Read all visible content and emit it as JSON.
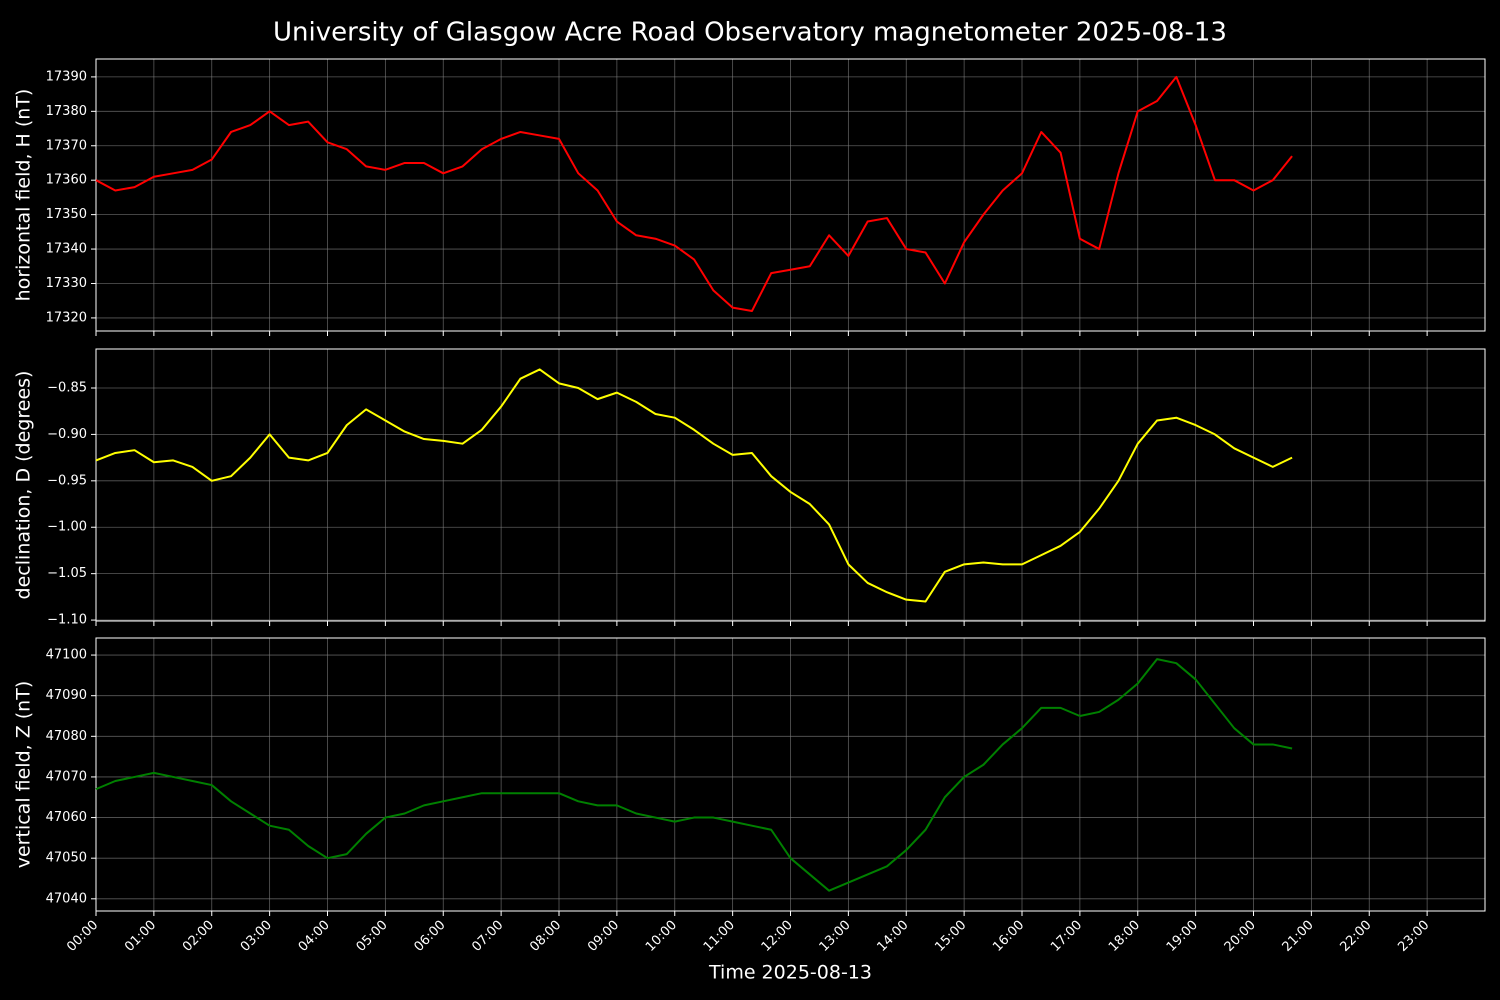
{
  "title": "University of Glasgow Acre Road Observatory magnetometer 2025-08-13",
  "chart_data": [
    {
      "type": "line",
      "y_label": "horizontal field, H (nT)",
      "grid": true,
      "xlim": [
        "00:00",
        "24:00"
      ],
      "ylim": [
        17316.2,
        17395.2
      ],
      "yticks": [
        17320,
        17330,
        17340,
        17350,
        17360,
        17370,
        17380,
        17390
      ],
      "x": [
        "00:00",
        "00:20",
        "00:40",
        "01:00",
        "01:20",
        "01:40",
        "02:00",
        "02:20",
        "02:40",
        "03:00",
        "03:20",
        "03:40",
        "04:00",
        "04:20",
        "04:40",
        "05:00",
        "05:20",
        "05:40",
        "06:00",
        "06:20",
        "06:40",
        "07:00",
        "07:20",
        "07:40",
        "08:00",
        "08:20",
        "08:40",
        "09:00",
        "09:20",
        "09:40",
        "10:00",
        "10:20",
        "10:40",
        "11:00",
        "11:20",
        "11:40",
        "12:00",
        "12:20",
        "12:40",
        "13:00",
        "13:20",
        "13:40",
        "14:00",
        "14:20",
        "14:40",
        "15:00",
        "15:20",
        "15:40",
        "16:00",
        "16:20",
        "16:40",
        "17:00",
        "17:20",
        "17:40",
        "18:00",
        "18:20",
        "18:40",
        "19:00",
        "19:20",
        "19:40",
        "20:00",
        "20:20",
        "20:40"
      ],
      "series": [
        {
          "color": "#ff0000",
          "values": [
            17360,
            17357,
            17358,
            17361,
            17362,
            17363,
            17366,
            17374,
            17376,
            17380,
            17376,
            17377,
            17371,
            17369,
            17364,
            17363,
            17365,
            17365,
            17362,
            17364,
            17369,
            17372,
            17374,
            17373,
            17372,
            17362,
            17357,
            17348,
            17344,
            17343,
            17341,
            17337,
            17328,
            17323,
            17322,
            17333,
            17334,
            17335,
            17344,
            17338,
            17348,
            17349,
            17340,
            17339,
            17330,
            17342,
            17350,
            17357,
            17362,
            17374,
            17368,
            17343,
            17340,
            17362,
            17380,
            17383,
            17390,
            17376,
            17360,
            17360,
            17357,
            17360,
            17367
          ]
        }
      ]
    },
    {
      "type": "line",
      "y_label": "declination, D (degrees)",
      "grid": true,
      "xlim": [
        "00:00",
        "24:00"
      ],
      "ylim": [
        -1.101,
        -0.808
      ],
      "yticks": [
        {
          "value": -0.85,
          "label": "−0.85"
        },
        {
          "value": -0.9,
          "label": "−0.90"
        },
        {
          "value": -0.95,
          "label": "−0.95"
        },
        {
          "value": -1.0,
          "label": "−1.00"
        },
        {
          "value": -1.05,
          "label": "−1.05"
        },
        {
          "value": -1.1,
          "label": "−1.10"
        }
      ],
      "x": [
        "00:00",
        "00:20",
        "00:40",
        "01:00",
        "01:20",
        "01:40",
        "02:00",
        "02:20",
        "02:40",
        "03:00",
        "03:20",
        "03:40",
        "04:00",
        "04:20",
        "04:40",
        "05:00",
        "05:20",
        "05:40",
        "06:00",
        "06:20",
        "06:40",
        "07:00",
        "07:20",
        "07:40",
        "08:00",
        "08:20",
        "08:40",
        "09:00",
        "09:20",
        "09:40",
        "10:00",
        "10:20",
        "10:40",
        "11:00",
        "11:20",
        "11:40",
        "12:00",
        "12:20",
        "12:40",
        "13:00",
        "13:20",
        "13:40",
        "14:00",
        "14:20",
        "14:40",
        "15:00",
        "15:20",
        "15:40",
        "16:00",
        "16:20",
        "16:40",
        "17:00",
        "17:20",
        "17:40",
        "18:00",
        "18:20",
        "18:40",
        "19:00",
        "19:20",
        "19:40",
        "20:00",
        "20:20",
        "20:40"
      ],
      "series": [
        {
          "color": "#ffff00",
          "values": [
            -0.928,
            -0.92,
            -0.917,
            -0.93,
            -0.928,
            -0.935,
            -0.95,
            -0.945,
            -0.925,
            -0.9,
            -0.925,
            -0.928,
            -0.92,
            -0.89,
            -0.873,
            -0.885,
            -0.897,
            -0.905,
            -0.907,
            -0.91,
            -0.895,
            -0.87,
            -0.84,
            -0.83,
            -0.845,
            -0.85,
            -0.862,
            -0.855,
            -0.865,
            -0.878,
            -0.882,
            -0.895,
            -0.91,
            -0.922,
            -0.92,
            -0.945,
            -0.962,
            -0.975,
            -0.997,
            -1.04,
            -1.06,
            -1.07,
            -1.078,
            -1.08,
            -1.048,
            -1.04,
            -1.038,
            -1.04,
            -1.04,
            -1.03,
            -1.02,
            -1.005,
            -0.98,
            -0.95,
            -0.91,
            -0.885,
            -0.882,
            -0.89,
            -0.9,
            -0.915,
            -0.925,
            -0.935,
            -0.925
          ]
        }
      ]
    },
    {
      "type": "line",
      "y_label": "vertical field, Z (nT)",
      "x_label": "Time 2025-08-13",
      "grid": true,
      "xlim": [
        "00:00",
        "24:00"
      ],
      "xticks": [
        "00:00",
        "01:00",
        "02:00",
        "03:00",
        "04:00",
        "05:00",
        "06:00",
        "07:00",
        "08:00",
        "09:00",
        "10:00",
        "11:00",
        "12:00",
        "13:00",
        "14:00",
        "15:00",
        "16:00",
        "17:00",
        "18:00",
        "19:00",
        "20:00",
        "21:00",
        "22:00",
        "23:00"
      ],
      "ylim": [
        47037.0,
        47104.2
      ],
      "yticks": [
        47040,
        47050,
        47060,
        47070,
        47080,
        47090,
        47100
      ],
      "x": [
        "00:00",
        "00:20",
        "00:40",
        "01:00",
        "01:20",
        "01:40",
        "02:00",
        "02:20",
        "02:40",
        "03:00",
        "03:20",
        "03:40",
        "04:00",
        "04:20",
        "04:40",
        "05:00",
        "05:20",
        "05:40",
        "06:00",
        "06:20",
        "06:40",
        "07:00",
        "07:20",
        "07:40",
        "08:00",
        "08:20",
        "08:40",
        "09:00",
        "09:20",
        "09:40",
        "10:00",
        "10:20",
        "10:40",
        "11:00",
        "11:20",
        "11:40",
        "12:00",
        "12:20",
        "12:40",
        "13:00",
        "13:20",
        "13:40",
        "14:00",
        "14:20",
        "14:40",
        "15:00",
        "15:20",
        "15:40",
        "16:00",
        "16:20",
        "16:40",
        "17:00",
        "17:20",
        "17:40",
        "18:00",
        "18:20",
        "18:40",
        "19:00",
        "19:20",
        "19:40",
        "20:00",
        "20:20",
        "20:40"
      ],
      "series": [
        {
          "color": "#008000",
          "values": [
            47067,
            47069,
            47070,
            47071,
            47070,
            47069,
            47068,
            47064,
            47061,
            47058,
            47057,
            47053,
            47050,
            47051,
            47056,
            47060,
            47061,
            47063,
            47064,
            47065,
            47066,
            47066,
            47066,
            47066,
            47066,
            47064,
            47063,
            47063,
            47061,
            47060,
            47059,
            47060,
            47060,
            47059,
            47058,
            47057,
            47050,
            47046,
            47042,
            47044,
            47046,
            47048,
            47052,
            47057,
            47065,
            47070,
            47073,
            47078,
            47082,
            47087,
            47087,
            47085,
            47086,
            47089,
            47093,
            47099,
            47098,
            47094,
            47088,
            47082,
            47078,
            47078,
            47077
          ]
        }
      ]
    }
  ]
}
